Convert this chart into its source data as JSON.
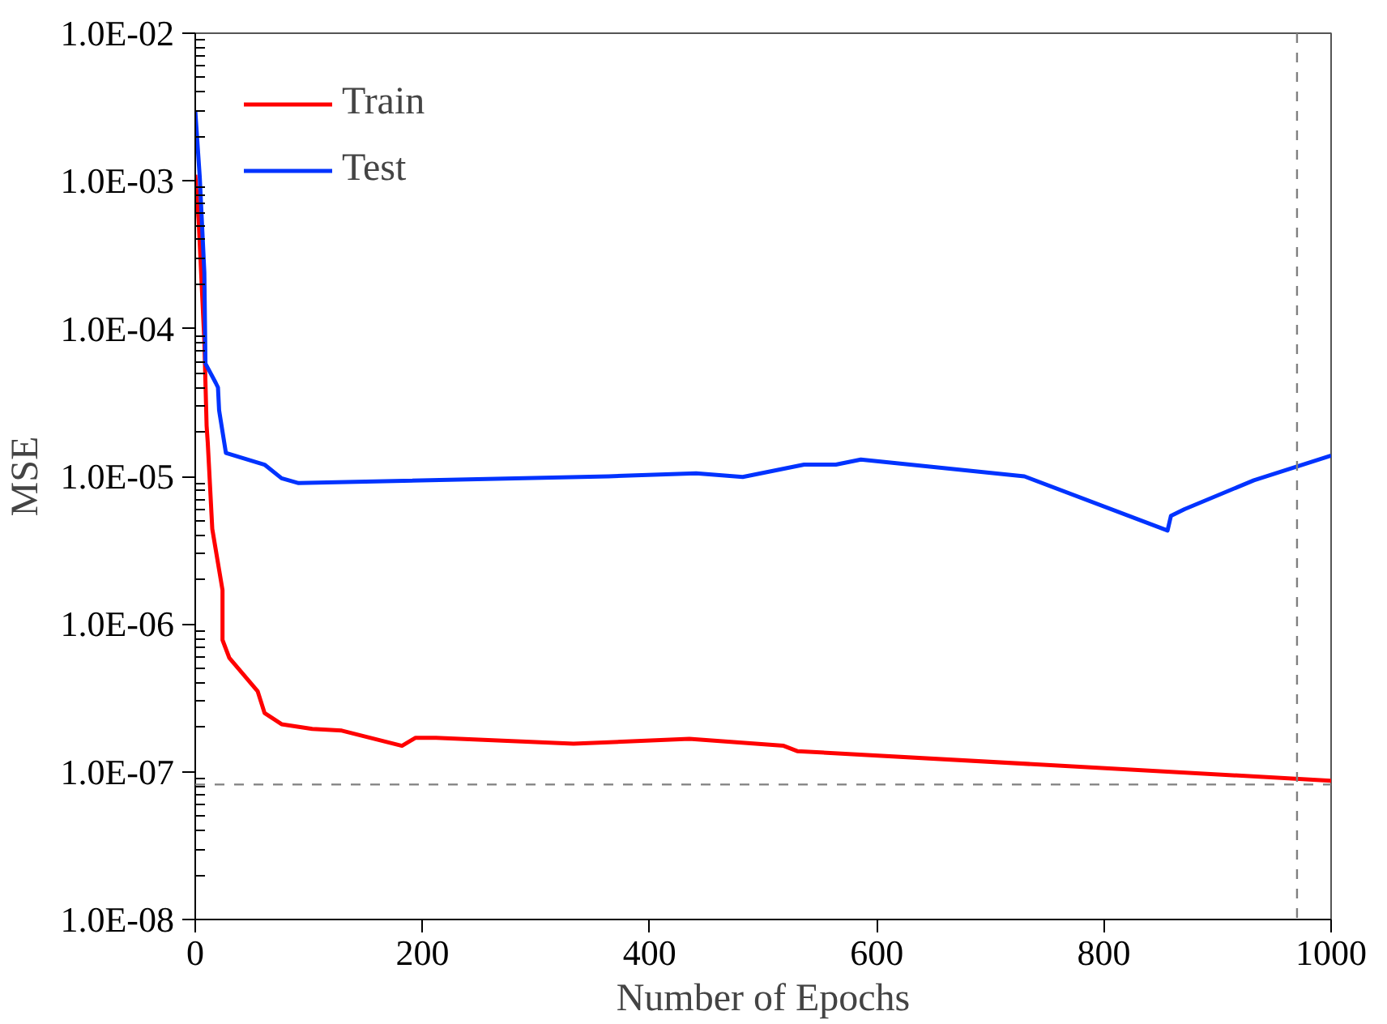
{
  "chart_data": {
    "type": "line",
    "xlabel": "Number of Epochs",
    "ylabel": "MSE",
    "log": "y",
    "grid": false,
    "legend": "top left",
    "line_style": "solid",
    "xlim": [
      0,
      1000
    ],
    "xticks": [
      0,
      200,
      400,
      600,
      800,
      1000
    ],
    "ylim": [
      1e-08,
      0.01
    ],
    "yticks": [
      {
        "value": 1e-08,
        "label": "1.0E-08"
      },
      {
        "value": 1e-07,
        "label": "1.0E-07"
      },
      {
        "value": 1e-06,
        "label": "1.0E-06"
      },
      {
        "value": 1e-05,
        "label": "1.0E-05"
      },
      {
        "value": 0.0001,
        "label": "1.0E-04"
      },
      {
        "value": 0.001,
        "label": "1.0E-03"
      },
      {
        "value": 0.01,
        "label": "1.0E-02"
      }
    ],
    "ref_lines": [
      {
        "axis": "y",
        "value": 8.2e-08,
        "color": "#808080",
        "line_style": "dashed"
      },
      {
        "axis": "x",
        "value": 970,
        "color": "#808080",
        "line_style": "dashed"
      }
    ],
    "series": [
      {
        "name": "Train",
        "color": "#ff0000",
        "x": [
          0,
          3,
          8,
          10,
          11,
          15,
          24,
          24,
          30,
          55,
          61,
          76,
          103,
          129,
          182,
          194,
          212,
          333,
          435,
          518,
          530,
          1000
        ],
        "values": [
          0.0011,
          0.00054,
          8.3e-05,
          2.2e-05,
          1.7e-05,
          4.4e-06,
          1.7e-06,
          7.8e-07,
          5.9e-07,
          3.5e-07,
          2.5e-07,
          2.1e-07,
          1.95e-07,
          1.9e-07,
          1.5e-07,
          1.7e-07,
          1.7e-07,
          1.55e-07,
          1.67e-07,
          1.5e-07,
          1.38e-07,
          8.7e-08
        ]
      },
      {
        "name": "Test",
        "color": "#0033ff",
        "x": [
          0,
          4,
          8,
          9,
          18,
          20,
          21,
          27,
          61,
          76,
          91,
          364,
          441,
          482,
          536,
          564,
          586,
          730,
          856,
          859,
          871,
          932,
          1000
        ],
        "values": [
          0.003,
          0.00105,
          0.00024,
          5.8e-05,
          4.3e-05,
          4e-05,
          2.8e-05,
          1.44e-05,
          1.2e-05,
          9.7e-06,
          9e-06,
          1e-05,
          1.05e-05,
          9.9e-06,
          1.2e-05,
          1.2e-05,
          1.3e-05,
          1e-05,
          4.3e-06,
          5.4e-06,
          6e-06,
          9.4e-06,
          1.38e-05
        ]
      }
    ]
  }
}
